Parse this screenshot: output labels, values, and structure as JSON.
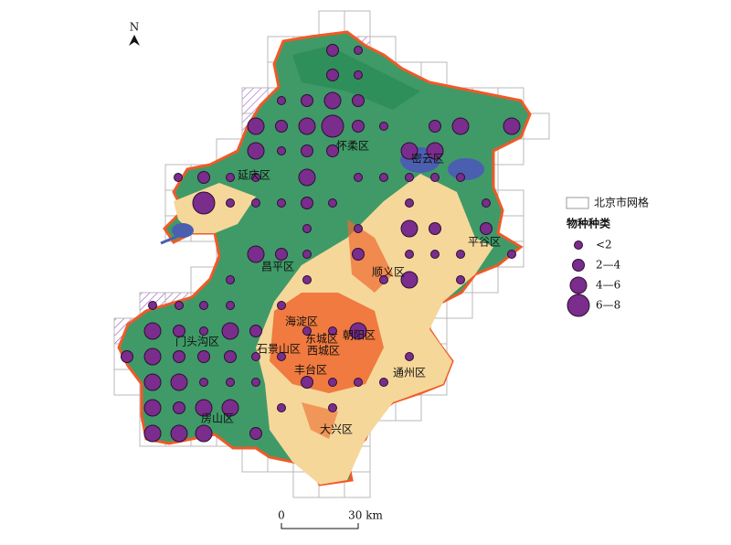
{
  "north": "N",
  "districts": [
    "怀柔区",
    "密云区",
    "延庆区",
    "平谷区",
    "昌平区",
    "顺义区",
    "海淀区",
    "东城区",
    "朝阳区",
    "门头沟区",
    "石景山区",
    "西城区",
    "丰台区",
    "通州区",
    "房山区",
    "大兴区"
  ],
  "legend": {
    "grid": "北京市网格",
    "title": "物种种类",
    "classes": [
      "<2",
      "2—4",
      "4—6",
      "6—8"
    ]
  },
  "scale_bar": {
    "start": "0",
    "end": "30 km"
  },
  "sites": [
    "2—4",
    "<2",
    "2—4",
    "<2",
    "<2",
    "2—4",
    "4—6",
    "2—4",
    "4—6",
    "2—4",
    "4—6",
    "6—8",
    "2—4",
    "<2",
    "2—4",
    "4—6",
    "4—6",
    "4—6",
    "<2",
    "2—4",
    "2—4",
    "4—6",
    "4—6",
    "<2",
    "2—4",
    "<2",
    "<2",
    "4—6",
    "<2",
    "<2",
    "<2",
    "<2",
    "<2",
    "6—8",
    "<2",
    "<2",
    "<2",
    "2—4",
    "<2",
    "<2",
    "<2",
    "<2",
    "<2",
    "4—6",
    "2—4",
    "2—4",
    "4—6",
    "2—4",
    "<2",
    "2—4",
    "<2",
    "<2",
    "<2",
    "<2",
    "<2",
    "<2",
    "<2",
    "4—6",
    "<2",
    "<2",
    "<2",
    "<2",
    "<2",
    "<2",
    "4—6",
    "2—4",
    "<2",
    "4—6",
    "2—4",
    "<2",
    "<2",
    "4—6",
    "2—4",
    "4—6",
    "2—4",
    "2—4",
    "2—4",
    "<2",
    "<2",
    "<2",
    "4—6",
    "4—6",
    "<2",
    "<2",
    "<2",
    "2—4",
    "<2",
    "<2",
    "<2",
    "4—6",
    "2—4",
    "4—6",
    "4—6",
    "<2",
    "<2",
    "4—6",
    "4—6",
    "4—6",
    "2—4"
  ]
}
